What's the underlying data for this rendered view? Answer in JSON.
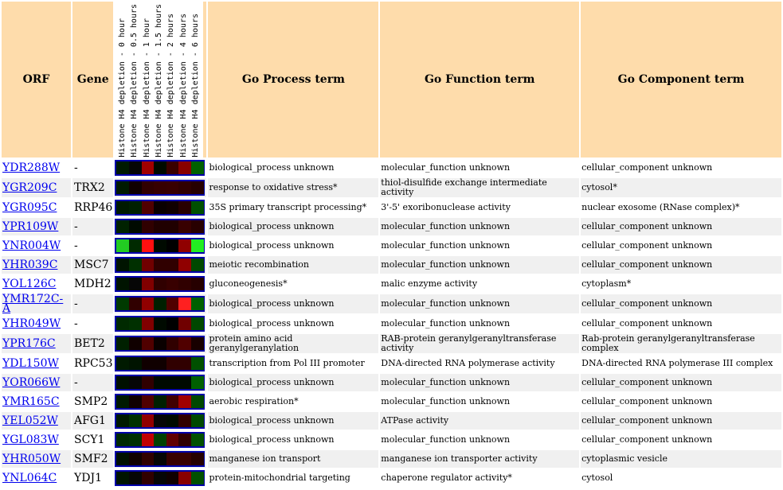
{
  "headers": {
    "orf": "ORF",
    "gene": "Gene",
    "process": "Go Process term",
    "function": "Go Function term",
    "component": "Go Component term"
  },
  "conditions": [
    "Histone H4 depletion - 0 hour",
    "Histone H4 depletion - 0.5 hours",
    "Histone H4 depletion - 1 hour",
    "Histone H4 depletion - 1.5 hours",
    "Histone H4 depletion - 2 hours",
    "Histone H4 depletion - 4 hours",
    "Histone H4 depletion - 6 hours"
  ],
  "colors": {
    "header_bg": "#fedcab",
    "link": "#0000ee",
    "heat_border": "#0000aa"
  },
  "rows": [
    {
      "orf": "YDR288W",
      "gene": "-",
      "process": "biological_process unknown",
      "function": "molecular_function unknown",
      "component": "cellular_component unknown",
      "heat": [
        "#001a00",
        "#060606",
        "#a00000",
        "#000a00",
        "#3a0000",
        "#880000",
        "#006000"
      ]
    },
    {
      "orf": "YGR209C",
      "gene": "TRX2",
      "process": "response to oxidative stress*",
      "function": "thiol-disulfide exchange intermediate activity",
      "component": "cytosol*",
      "heat": [
        "#001a00",
        "#100000",
        "#300000",
        "#360000",
        "#380000",
        "#300000",
        "#260000"
      ]
    },
    {
      "orf": "YGR095C",
      "gene": "RRP46",
      "process": "35S primary transcript processing*",
      "function": "3'-5' exoribonuclease activity",
      "component": "nuclear exosome (RNase complex)*",
      "heat": [
        "#001a00",
        "#002000",
        "#500000",
        "#0a0000",
        "#100000",
        "#280000",
        "#005000"
      ]
    },
    {
      "orf": "YPR109W",
      "gene": "-",
      "process": "biological_process unknown",
      "function": "molecular_function unknown",
      "component": "cellular_component unknown",
      "heat": [
        "#002200",
        "#000a00",
        "#300000",
        "#200000",
        "#200000",
        "#380000",
        "#280000"
      ]
    },
    {
      "orf": "YNR004W",
      "gene": "-",
      "process": "biological_process unknown",
      "function": "molecular_function unknown",
      "component": "cellular_component unknown",
      "heat": [
        "#22cc22",
        "#002a00",
        "#ff1010",
        "#000a00",
        "#000000",
        "#900000",
        "#22ee22"
      ]
    },
    {
      "orf": "YHR039C",
      "gene": "MSC7",
      "process": "meiotic recombination",
      "function": "molecular_function unknown",
      "component": "cellular_component unknown",
      "heat": [
        "#001400",
        "#003000",
        "#700000",
        "#300000",
        "#300000",
        "#900000",
        "#004800"
      ]
    },
    {
      "orf": "YOL126C",
      "gene": "MDH2",
      "process": "gluconeogenesis*",
      "function": "malic enzyme activity",
      "component": "cytoplasm*",
      "heat": [
        "#001400",
        "#060606",
        "#800000",
        "#300000",
        "#380000",
        "#300000",
        "#260000"
      ]
    },
    {
      "orf": "YMR172C-A",
      "gene": "-",
      "process": "biological_process unknown",
      "function": "molecular_function unknown",
      "component": "cellular_component unknown",
      "heat": [
        "#003a00",
        "#300000",
        "#900000",
        "#002000",
        "#500000",
        "#ff2020",
        "#006000"
      ]
    },
    {
      "orf": "YHR049W",
      "gene": "-",
      "process": "biological_process unknown",
      "function": "molecular_function unknown",
      "component": "cellular_component unknown",
      "heat": [
        "#002a00",
        "#003000",
        "#800000",
        "#000a00",
        "#000000",
        "#700000",
        "#004800"
      ]
    },
    {
      "orf": "YPR176C",
      "gene": "BET2",
      "process": "protein amino acid geranylgeranylation",
      "function": "RAB-protein geranylgeranyltransferase activity",
      "component": "Rab-protein geranylgeranyltransferase complex",
      "heat": [
        "#002000",
        "#100000",
        "#500000",
        "#0a0000",
        "#300000",
        "#500000",
        "#180000"
      ]
    },
    {
      "orf": "YDL150W",
      "gene": "RPC53",
      "process": "transcription from Pol III promoter",
      "function": "DNA-directed RNA polymerase activity",
      "component": "DNA-directed RNA polymerase III complex",
      "heat": [
        "#001a00",
        "#001400",
        "#100000",
        "#100000",
        "#300000",
        "#300000",
        "#005000"
      ]
    },
    {
      "orf": "YOR066W",
      "gene": "-",
      "process": "biological_process unknown",
      "function": "molecular_function unknown",
      "component": "cellular_component unknown",
      "heat": [
        "#001000",
        "#060606",
        "#300000",
        "#000a00",
        "#000a00",
        "#000a00",
        "#006000"
      ]
    },
    {
      "orf": "YMR165C",
      "gene": "SMP2",
      "process": "aerobic respiration*",
      "function": "molecular_function unknown",
      "component": "cellular_component unknown",
      "heat": [
        "#001a00",
        "#100000",
        "#500000",
        "#002000",
        "#400000",
        "#a00000",
        "#004800"
      ]
    },
    {
      "orf": "YEL052W",
      "gene": "AFG1",
      "process": "biological_process unknown",
      "function": "ATPase activity",
      "component": "cellular_component unknown",
      "heat": [
        "#001a00",
        "#003000",
        "#900000",
        "#060606",
        "#000a00",
        "#300000",
        "#004800"
      ]
    },
    {
      "orf": "YGL083W",
      "gene": "SCY1",
      "process": "biological_process unknown",
      "function": "molecular_function unknown",
      "component": "cellular_component unknown",
      "heat": [
        "#002a00",
        "#003000",
        "#c00000",
        "#004000",
        "#600000",
        "#300000",
        "#005000"
      ]
    },
    {
      "orf": "YHR050W",
      "gene": "SMF2",
      "process": "manganese ion transport",
      "function": "manganese ion transporter activity",
      "component": "cytoplasmic vesicle",
      "heat": [
        "#001000",
        "#100000",
        "#300000",
        "#060606",
        "#380000",
        "#380000",
        "#260000"
      ]
    },
    {
      "orf": "YNL064C",
      "gene": "YDJ1",
      "process": "protein-mitochondrial targeting",
      "function": "chaperone regulator activity*",
      "component": "cytosol",
      "heat": [
        "#001400",
        "#060606",
        "#300000",
        "#060606",
        "#100000",
        "#880000",
        "#005000"
      ]
    }
  ]
}
